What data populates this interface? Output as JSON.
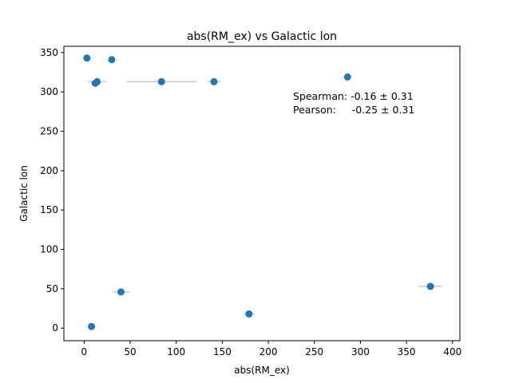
{
  "chart_data": {
    "type": "scatter",
    "title": "abs(RM_ex) vs Galactic lon",
    "xlabel": "abs(RM_ex)",
    "ylabel": "Galactic lon",
    "xlim": [
      -22,
      408
    ],
    "ylim": [
      -16,
      358
    ],
    "xticks": [
      0,
      50,
      100,
      150,
      200,
      250,
      300,
      350,
      400
    ],
    "yticks": [
      0,
      50,
      100,
      150,
      200,
      250,
      300,
      350
    ],
    "grid": false,
    "point_color": "#1f77b4",
    "errorbar_color": "#c8c8c8",
    "points": [
      {
        "x": 3,
        "y": 343,
        "xerr": 3
      },
      {
        "x": 30,
        "y": 341,
        "xerr": 2
      },
      {
        "x": 286,
        "y": 319,
        "xerr": 4
      },
      {
        "x": 84,
        "y": 313,
        "xerr": 38
      },
      {
        "x": 141,
        "y": 313,
        "xerr": 7
      },
      {
        "x": 14,
        "y": 313,
        "xerr": 10
      },
      {
        "x": 12,
        "y": 311,
        "xerr": 4
      },
      {
        "x": 40,
        "y": 46,
        "xerr": 9
      },
      {
        "x": 376,
        "y": 53,
        "xerr": 13
      },
      {
        "x": 179,
        "y": 18,
        "xerr": 6
      },
      {
        "x": 8,
        "y": 2,
        "xerr": 2
      }
    ],
    "annotations": [
      "Spearman: -0.16 ± 0.31",
      "Pearson:     -0.25 ± 0.31"
    ]
  }
}
